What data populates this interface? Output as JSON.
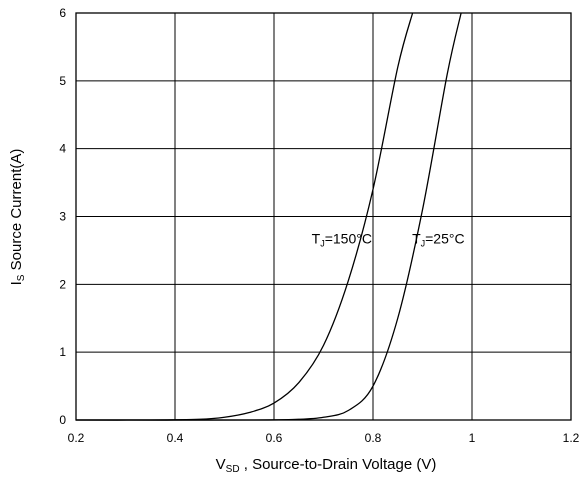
{
  "chart_data": {
    "type": "line",
    "xlabel": {
      "main": "V",
      "sub": "SD",
      "rest": " , Source-to-Drain Voltage (V)"
    },
    "ylabel": {
      "main": "I",
      "sub": "S",
      "rest": " Source Current(A)"
    },
    "xlim": [
      0.2,
      1.2
    ],
    "ylim": [
      0,
      6
    ],
    "xticks": [
      "0.2",
      "0.4",
      "0.6",
      "0.8",
      "1",
      "1.2"
    ],
    "yticks": [
      "0",
      "1",
      "2",
      "3",
      "4",
      "5",
      "6"
    ],
    "xtick_values": [
      0.2,
      0.4,
      0.6,
      0.8,
      1.0,
      1.2
    ],
    "ytick_values": [
      0,
      1,
      2,
      3,
      4,
      5,
      6
    ],
    "grid": true,
    "series": [
      {
        "annotation": {
          "main": "T",
          "sub": "J",
          "rest": "=150°C"
        },
        "label_at": [
          0.737,
          2.6
        ],
        "x": [
          0.2,
          0.35,
          0.45,
          0.5,
          0.55,
          0.6,
          0.65,
          0.7,
          0.75,
          0.8,
          0.85,
          0.88
        ],
        "y": [
          0,
          0.0,
          0.01,
          0.04,
          0.11,
          0.25,
          0.55,
          1.1,
          2.05,
          3.4,
          5.2,
          6.0
        ]
      },
      {
        "annotation": {
          "main": "T",
          "sub": "J",
          "rest": "=25°C"
        },
        "label_at": [
          0.932,
          2.6
        ],
        "x": [
          0.2,
          0.55,
          0.65,
          0.7,
          0.75,
          0.8,
          0.85,
          0.9,
          0.95,
          0.978
        ],
        "y": [
          0,
          0.0,
          0.01,
          0.04,
          0.14,
          0.5,
          1.5,
          3.1,
          5.1,
          6.0
        ]
      }
    ]
  }
}
